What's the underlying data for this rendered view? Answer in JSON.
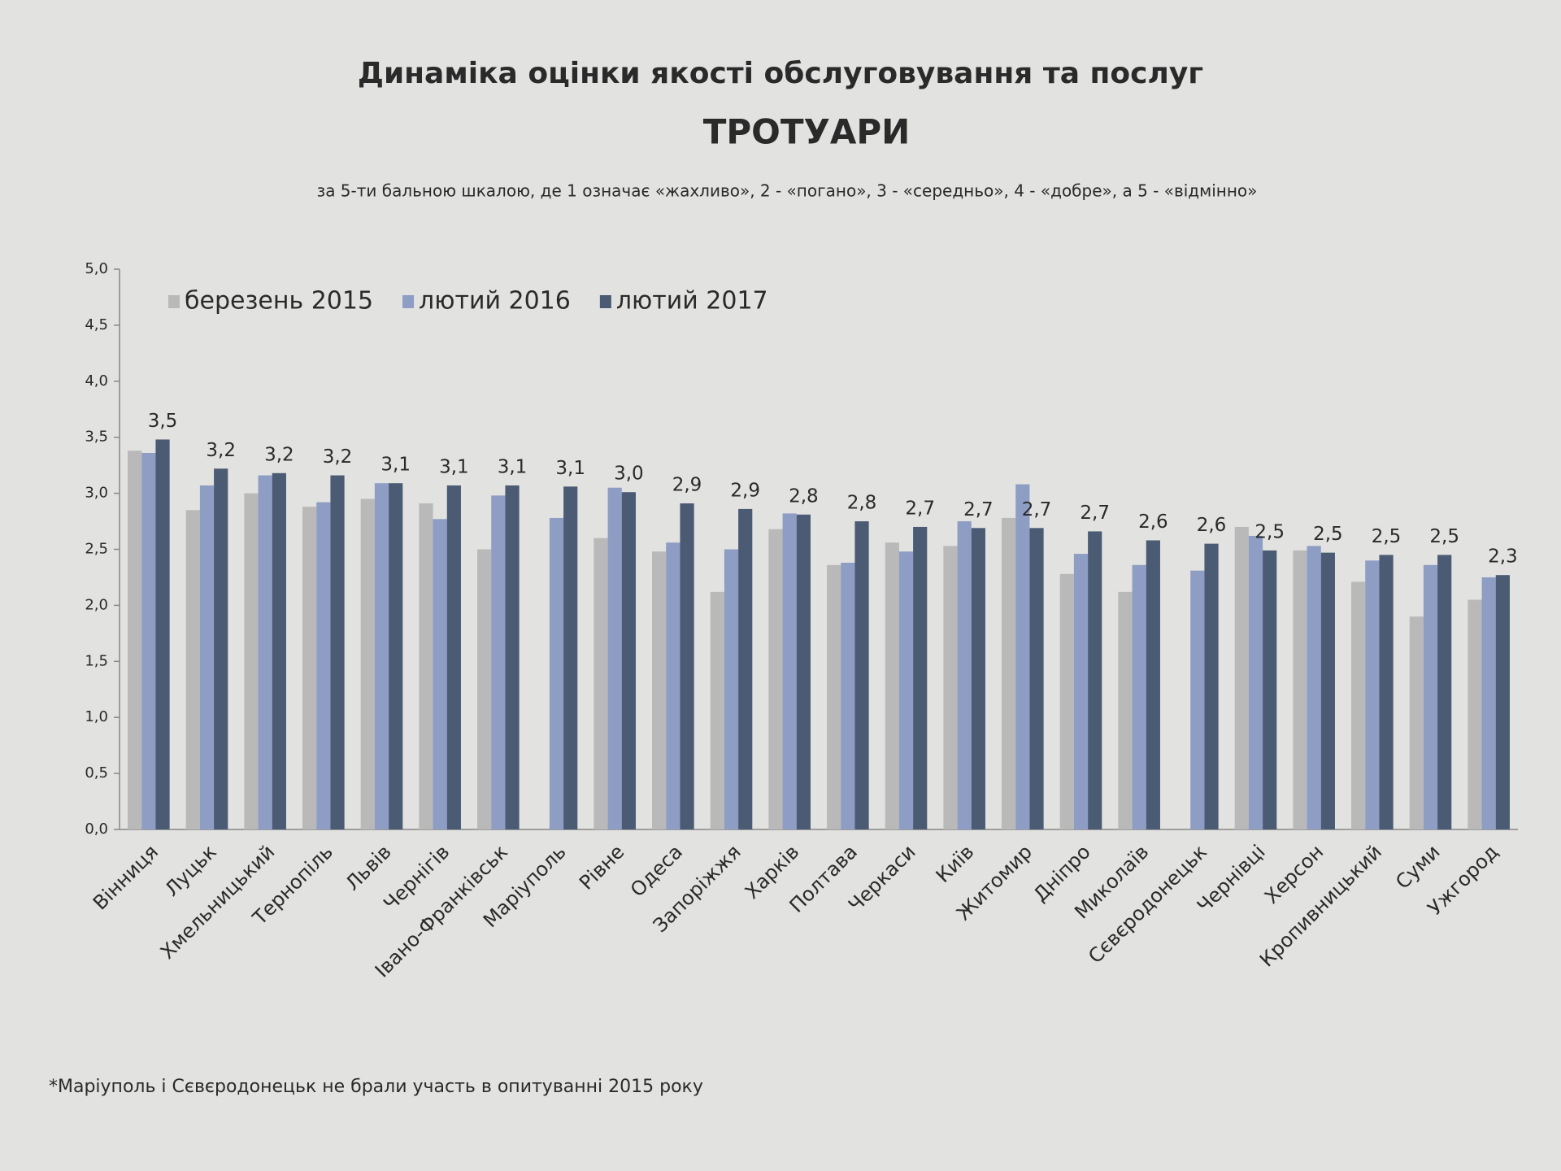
{
  "chart_data": {
    "type": "bar",
    "title": "Динаміка оцінки якості обслуговування та послуг",
    "subtitle": "ТРОТУАРИ",
    "note": "за 5-ти бальною шкалою, де 1 означає «жахливо», 2 - «погано», 3 - «середньо», 4 - «добре», а 5 - «відмінно»",
    "footnote": "*Маріуполь і Сєвєродонецьк не брали участь в опитуванні 2015 року",
    "categories": [
      "Вінниця",
      "Луцьк",
      "Хмельницький",
      "Тернопіль",
      "Львів",
      "Чернігів",
      "Івано-Франківськ",
      "Маріуполь",
      "Рівне",
      "Одеса",
      "Запоріжжя",
      "Харків",
      "Полтава",
      "Черкаси",
      "Київ",
      "Житомир",
      "Дніпро",
      "Миколаїв",
      "Сєвєродонецьк",
      "Чернівці",
      "Херсон",
      "Кропивницький",
      "Суми",
      "Ужгород"
    ],
    "series": [
      {
        "name": "березень 2015",
        "color": "#b9b9b9",
        "values": [
          3.38,
          2.85,
          3.0,
          2.88,
          2.95,
          2.91,
          2.5,
          null,
          2.6,
          2.48,
          2.12,
          2.68,
          2.36,
          2.56,
          2.53,
          2.78,
          2.28,
          2.12,
          null,
          2.7,
          2.49,
          2.21,
          1.9,
          2.05
        ]
      },
      {
        "name": "лютий 2016",
        "color": "#8e9dc4",
        "values": [
          3.36,
          3.07,
          3.16,
          2.92,
          3.09,
          2.77,
          2.98,
          2.78,
          3.05,
          2.56,
          2.5,
          2.82,
          2.38,
          2.48,
          2.75,
          3.08,
          2.46,
          2.36,
          2.31,
          2.62,
          2.53,
          2.4,
          2.36,
          2.25
        ]
      },
      {
        "name": "лютий 2017",
        "color": "#4b5b73",
        "values": [
          3.48,
          3.22,
          3.18,
          3.16,
          3.09,
          3.07,
          3.07,
          3.06,
          3.01,
          2.91,
          2.86,
          2.81,
          2.75,
          2.7,
          2.69,
          2.69,
          2.66,
          2.58,
          2.55,
          2.49,
          2.47,
          2.45,
          2.45,
          2.27
        ],
        "value_labels": [
          "3,5",
          "3,2",
          "3,2",
          "3,2",
          "3,1",
          "3,1",
          "3,1",
          "3,1",
          "3,0",
          "2,9",
          "2,9",
          "2,8",
          "2,8",
          "2,7",
          "2,7",
          "2,7",
          "2,7",
          "2,6",
          "2,6",
          "2,5",
          "2,5",
          "2,5",
          "2,5",
          "2,3"
        ]
      }
    ],
    "ylim": [
      0,
      5
    ],
    "yticks": [
      {
        "value": 0,
        "label": "0,0"
      },
      {
        "value": 0.5,
        "label": "0,5"
      },
      {
        "value": 1,
        "label": "1,0"
      },
      {
        "value": 1.5,
        "label": "1,5"
      },
      {
        "value": 2,
        "label": "2,0"
      },
      {
        "value": 2.5,
        "label": "2,5"
      },
      {
        "value": 3,
        "label": "3,0"
      },
      {
        "value": 3.5,
        "label": "3,5"
      },
      {
        "value": 4,
        "label": "4,0"
      },
      {
        "value": 4.5,
        "label": "4,5"
      },
      {
        "value": 5,
        "label": "5,0"
      }
    ],
    "grid": false,
    "legend": "top-left"
  }
}
